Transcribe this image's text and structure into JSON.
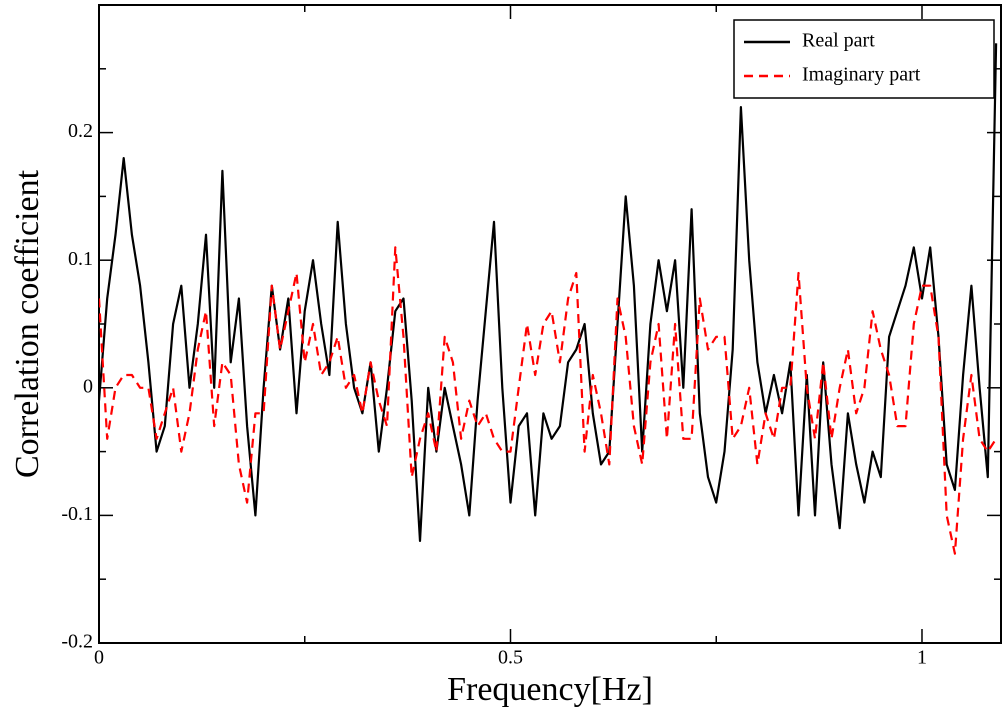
{
  "chart_data": {
    "type": "line",
    "xlabel": "Frequency[Hz]",
    "ylabel": "Correlation coefficient",
    "x": [
      0,
      0.01,
      0.02,
      0.03,
      0.04,
      0.05,
      0.06,
      0.07,
      0.08,
      0.09,
      0.1,
      0.11,
      0.12,
      0.13,
      0.14,
      0.15,
      0.16,
      0.17,
      0.18,
      0.19,
      0.2,
      0.21,
      0.22,
      0.23,
      0.24,
      0.25,
      0.26,
      0.27,
      0.28,
      0.29,
      0.3,
      0.31,
      0.32,
      0.33,
      0.34,
      0.35,
      0.36,
      0.37,
      0.38,
      0.39,
      0.4,
      0.41,
      0.42,
      0.43,
      0.44,
      0.45,
      0.46,
      0.47,
      0.48,
      0.49,
      0.5,
      0.51,
      0.52,
      0.53,
      0.54,
      0.55,
      0.56,
      0.57,
      0.58,
      0.59,
      0.6,
      0.61,
      0.62,
      0.63,
      0.64,
      0.65,
      0.66,
      0.67,
      0.68,
      0.69,
      0.7,
      0.71,
      0.72,
      0.73,
      0.74,
      0.75,
      0.76,
      0.77,
      0.78,
      0.79,
      0.8,
      0.81,
      0.82,
      0.83,
      0.84,
      0.85,
      0.86,
      0.87,
      0.88,
      0.89,
      0.9,
      0.91,
      0.92,
      0.93,
      0.94,
      0.95,
      0.96,
      0.97,
      0.98,
      0.99,
      1.0,
      1.01,
      1.02,
      1.03,
      1.04,
      1.05,
      1.06,
      1.07,
      1.08,
      1.09
    ],
    "series": [
      {
        "name": "Real part",
        "color": "#000000",
        "dash": "solid",
        "values": [
          -0.01,
          0.07,
          0.12,
          0.18,
          0.12,
          0.08,
          0.02,
          -0.05,
          -0.03,
          0.05,
          0.08,
          0.0,
          0.05,
          0.12,
          0.0,
          0.17,
          0.02,
          0.07,
          -0.03,
          -0.1,
          0.0,
          0.08,
          0.03,
          0.07,
          -0.02,
          0.06,
          0.1,
          0.05,
          0.01,
          0.13,
          0.05,
          0.0,
          -0.02,
          0.02,
          -0.05,
          0.0,
          0.06,
          0.07,
          -0.01,
          -0.12,
          0.0,
          -0.05,
          0.0,
          -0.03,
          -0.06,
          -0.1,
          -0.01,
          0.06,
          0.13,
          0.0,
          -0.09,
          -0.03,
          -0.02,
          -0.1,
          -0.02,
          -0.04,
          -0.03,
          0.02,
          0.03,
          0.05,
          -0.02,
          -0.06,
          -0.05,
          0.05,
          0.15,
          0.08,
          -0.05,
          0.05,
          0.1,
          0.06,
          0.1,
          0.0,
          0.14,
          -0.02,
          -0.07,
          -0.09,
          -0.05,
          0.03,
          0.22,
          0.1,
          0.02,
          -0.02,
          0.01,
          -0.02,
          0.02,
          -0.1,
          0.01,
          -0.1,
          0.02,
          -0.06,
          -0.11,
          -0.02,
          -0.06,
          -0.09,
          -0.05,
          -0.07,
          0.04,
          0.06,
          0.08,
          0.11,
          0.07,
          0.11,
          0.04,
          -0.06,
          -0.08,
          0.01,
          0.08,
          0.0,
          -0.07,
          0.27
        ]
      },
      {
        "name": "Imaginary part",
        "color": "#ff0000",
        "dash": "dashed",
        "values": [
          0.07,
          -0.04,
          0.0,
          0.01,
          0.01,
          0.0,
          0.0,
          -0.04,
          -0.02,
          0.0,
          -0.05,
          -0.02,
          0.03,
          0.06,
          -0.03,
          0.02,
          0.01,
          -0.06,
          -0.09,
          -0.02,
          -0.02,
          0.08,
          0.03,
          0.06,
          0.09,
          0.02,
          0.05,
          0.01,
          0.02,
          0.04,
          0.0,
          0.01,
          -0.02,
          0.02,
          -0.01,
          -0.03,
          0.11,
          0.04,
          -0.07,
          -0.04,
          -0.02,
          -0.05,
          0.04,
          0.02,
          -0.04,
          -0.01,
          -0.03,
          -0.02,
          -0.04,
          -0.05,
          -0.05,
          0.0,
          0.05,
          0.01,
          0.05,
          0.06,
          0.02,
          0.07,
          0.09,
          -0.05,
          0.01,
          -0.02,
          -0.06,
          0.07,
          0.04,
          -0.03,
          -0.06,
          0.02,
          0.05,
          -0.04,
          0.05,
          -0.04,
          -0.04,
          0.07,
          0.03,
          0.04,
          0.04,
          -0.04,
          -0.03,
          0.0,
          -0.06,
          -0.02,
          -0.04,
          0.0,
          0.0,
          0.09,
          0.0,
          -0.04,
          0.02,
          -0.04,
          0.0,
          0.03,
          -0.02,
          0.0,
          0.06,
          0.03,
          0.01,
          -0.03,
          -0.03,
          0.05,
          0.08,
          0.08,
          0.04,
          -0.1,
          -0.13,
          -0.04,
          0.01,
          -0.04,
          -0.05,
          -0.04
        ]
      }
    ],
    "xlim": [
      0,
      1.096
    ],
    "ylim": [
      -0.2,
      0.3
    ],
    "xticks": [
      0,
      0.5,
      1
    ],
    "yticks": [
      -0.2,
      -0.1,
      0,
      0.1,
      0.2
    ],
    "xminorticks": [
      0.25,
      0.75
    ],
    "yminorticks": [
      -0.15,
      -0.05,
      0.05,
      0.15,
      0.25
    ],
    "legend": "top-right"
  }
}
